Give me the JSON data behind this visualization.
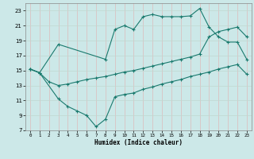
{
  "xlabel": "Humidex (Indice chaleur)",
  "background_color": "#cce8e8",
  "grid_color": "#b0cccc",
  "line_color": "#1a7a6e",
  "xlim": [
    -0.5,
    23.5
  ],
  "ylim": [
    7,
    24
  ],
  "xticks": [
    0,
    1,
    2,
    3,
    4,
    5,
    6,
    7,
    8,
    9,
    10,
    11,
    12,
    13,
    14,
    15,
    16,
    17,
    18,
    19,
    20,
    21,
    22,
    23
  ],
  "yticks": [
    7,
    9,
    11,
    13,
    15,
    17,
    19,
    21,
    23
  ],
  "curve_top_x": [
    0,
    1,
    3,
    8,
    9,
    10,
    11,
    12,
    13,
    14,
    15,
    16,
    17,
    18,
    19,
    20,
    21,
    22,
    23
  ],
  "curve_top_y": [
    15.2,
    14.7,
    18.5,
    16.5,
    20.5,
    21.0,
    20.5,
    22.2,
    22.5,
    22.2,
    22.2,
    22.2,
    22.3,
    23.3,
    20.8,
    19.5,
    18.8,
    18.8,
    16.5
  ],
  "curve_mid_x": [
    0,
    1,
    2,
    3,
    4,
    5,
    6,
    7,
    8,
    9,
    10,
    11,
    12,
    13,
    14,
    15,
    16,
    17,
    18,
    19,
    20,
    21,
    22,
    23
  ],
  "curve_mid_y": [
    15.2,
    14.7,
    13.5,
    13.0,
    13.2,
    13.5,
    13.8,
    14.0,
    14.2,
    14.5,
    14.8,
    15.0,
    15.3,
    15.6,
    15.9,
    16.2,
    16.5,
    16.8,
    17.2,
    19.5,
    20.2,
    20.5,
    20.8,
    19.5
  ],
  "curve_bot_x": [
    0,
    1,
    3,
    4,
    5,
    6,
    7,
    8,
    9,
    10,
    11,
    12,
    13,
    14,
    15,
    16,
    17,
    18,
    19,
    20,
    21,
    22,
    23
  ],
  "curve_bot_y": [
    15.2,
    14.7,
    11.2,
    10.2,
    9.6,
    9.0,
    7.5,
    8.5,
    11.5,
    11.8,
    12.0,
    12.5,
    12.8,
    13.2,
    13.5,
    13.8,
    14.2,
    14.5,
    14.8,
    15.2,
    15.5,
    15.8,
    14.5
  ]
}
